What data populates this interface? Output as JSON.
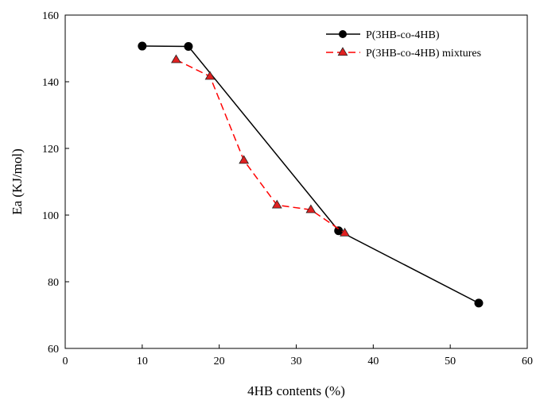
{
  "chart_data": {
    "type": "line",
    "title": "",
    "xlabel": "4HB contents (%)",
    "ylabel": "Ea (KJ/mol)",
    "xlim": [
      0,
      60
    ],
    "ylim": [
      60,
      160
    ],
    "x_ticks": [
      0,
      10,
      20,
      30,
      40,
      50,
      60
    ],
    "y_ticks": [
      60,
      80,
      100,
      120,
      140,
      160
    ],
    "grid": false,
    "legend_position": "top-right",
    "series": [
      {
        "name": "P(3HB-co-4HB)",
        "color": "#000000",
        "line_style": "solid",
        "marker": "circle",
        "points": [
          {
            "x": 10.0,
            "y": 150.7
          },
          {
            "x": 16.0,
            "y": 150.6
          },
          {
            "x": 35.5,
            "y": 95.3
          },
          {
            "x": 53.7,
            "y": 73.6
          }
        ]
      },
      {
        "name": "P(3HB-co-4HB) mixtures",
        "color": "#ff0000",
        "line_style": "dashed",
        "marker": "triangle",
        "points": [
          {
            "x": 14.4,
            "y": 146.6
          },
          {
            "x": 18.8,
            "y": 141.6
          },
          {
            "x": 23.2,
            "y": 116.4
          },
          {
            "x": 27.5,
            "y": 103.0
          },
          {
            "x": 31.9,
            "y": 101.6
          },
          {
            "x": 36.3,
            "y": 94.6
          }
        ]
      }
    ]
  }
}
